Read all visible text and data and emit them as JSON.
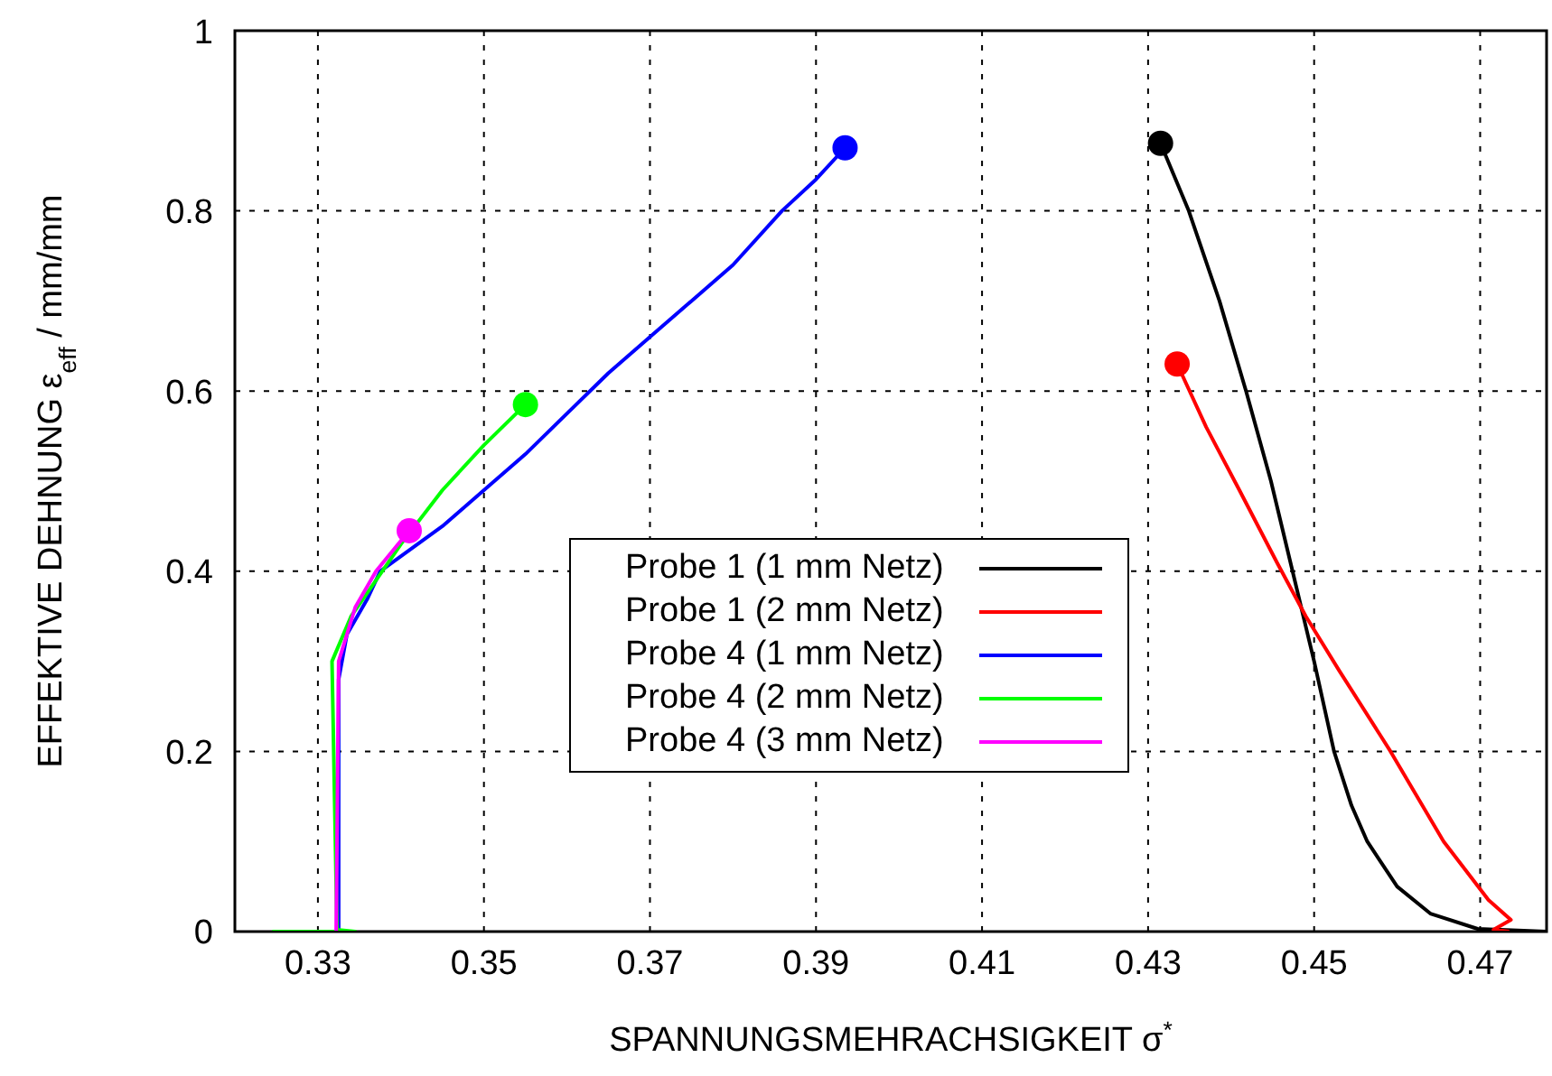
{
  "chart_data": {
    "type": "line",
    "xlabel": "SPANNUNGSMEHRACHSIGKEIT σ$^{*}$",
    "ylabel": "EFFEKTIVE DEHNUNG ε$_{eff}$ / mm/mm",
    "xlim": [
      0.32,
      0.478
    ],
    "xticks": [
      0.33,
      0.35,
      0.37,
      0.39,
      0.41,
      0.43,
      0.45,
      0.47
    ],
    "ylim": [
      0,
      1
    ],
    "yticks": [
      0,
      0.2,
      0.4,
      0.6,
      0.8,
      1
    ],
    "grid": true,
    "legend": "bottom right",
    "line_style": "solid",
    "series": [
      {
        "name": "Probe 1 (1 mm Netz)",
        "color": "#000000",
        "x": [
          0.478,
          0.4697,
          0.464,
          0.46,
          0.4564,
          0.4545,
          0.4524,
          0.45,
          0.4474,
          0.4448,
          0.4418,
          0.4386,
          0.4349,
          0.4315
        ],
        "values": [
          0,
          0.003,
          0.02,
          0.05,
          0.1,
          0.14,
          0.2,
          0.3,
          0.4,
          0.5,
          0.6,
          0.7,
          0.8,
          0.875
        ]
      },
      {
        "name": "Probe 1 (2 mm Netz)",
        "color": "#ff0000",
        "x": [
          0.4735,
          0.4716,
          0.4737,
          0.471,
          0.4656,
          0.4592,
          0.453,
          0.449,
          0.4455,
          0.441,
          0.437,
          0.4335
        ],
        "values": [
          0,
          0.002,
          0.013,
          0.035,
          0.1,
          0.2,
          0.29,
          0.35,
          0.41,
          0.49,
          0.56,
          0.63
        ]
      },
      {
        "name": "Probe 4 (1 mm Netz)",
        "color": "#0000ff",
        "x": [
          0.3325,
          0.3325,
          0.3335,
          0.336,
          0.3375,
          0.345,
          0.35,
          0.355,
          0.36,
          0.365,
          0.37,
          0.375,
          0.38,
          0.3859,
          0.39,
          0.3935
        ],
        "values": [
          0,
          0.28,
          0.33,
          0.37,
          0.4,
          0.45,
          0.49,
          0.53,
          0.575,
          0.62,
          0.66,
          0.7,
          0.74,
          0.8,
          0.835,
          0.87
        ]
      },
      {
        "name": "Probe 4 (2 mm Netz)",
        "color": "#00ff00",
        "x": [
          0.3245,
          0.3345,
          0.3323,
          0.3317,
          0.334,
          0.337,
          0.34,
          0.345,
          0.35,
          0.355
        ],
        "values": [
          0,
          0,
          0.002,
          0.3,
          0.35,
          0.39,
          0.43,
          0.49,
          0.54,
          0.585
        ]
      },
      {
        "name": "Probe 4 (3 mm Netz)",
        "color": "#ff00ff",
        "x": [
          0.3322,
          0.3325,
          0.3345,
          0.337,
          0.341
        ],
        "values": [
          0,
          0.3,
          0.36,
          0.4,
          0.445
        ]
      },
      {
        "type": "scatter",
        "marker": "circle",
        "color": "#000000",
        "x": [
          0.4315
        ],
        "values": [
          0.875
        ]
      },
      {
        "type": "scatter",
        "marker": "circle",
        "color": "#ff0000",
        "x": [
          0.4335
        ],
        "values": [
          0.63
        ]
      },
      {
        "type": "scatter",
        "marker": "circle",
        "color": "#0000ff",
        "x": [
          0.3935
        ],
        "values": [
          0.87
        ]
      },
      {
        "type": "scatter",
        "marker": "circle",
        "color": "#00ff00",
        "x": [
          0.355
        ],
        "values": [
          0.585
        ]
      },
      {
        "type": "scatter",
        "marker": "circle",
        "color": "#ff00ff",
        "x": [
          0.341
        ],
        "values": [
          0.445
        ]
      }
    ]
  }
}
